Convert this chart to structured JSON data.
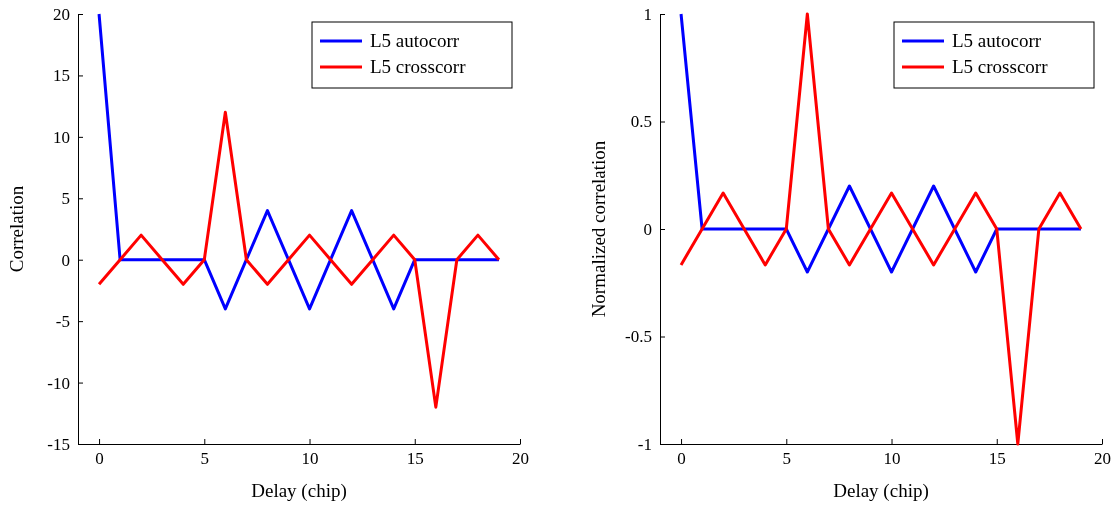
{
  "chart_data": [
    {
      "type": "line",
      "xlabel": "Delay (chip)",
      "ylabel": "Correlation",
      "x": [
        0,
        1,
        2,
        3,
        4,
        5,
        6,
        7,
        8,
        9,
        10,
        11,
        12,
        13,
        14,
        15,
        16,
        17,
        18,
        19
      ],
      "series": [
        {
          "name": "L5 autocorr",
          "color": "#0000ff",
          "values": [
            20,
            0,
            0,
            0,
            0,
            0,
            -4,
            0,
            4,
            0,
            -4,
            0,
            4,
            0,
            -4,
            0,
            0,
            0,
            0,
            0
          ]
        },
        {
          "name": "L5 crosscorr",
          "color": "#ff0000",
          "values": [
            -2,
            0,
            2,
            0,
            -2,
            0,
            12,
            0,
            -2,
            0,
            2,
            0,
            -2,
            0,
            2,
            0,
            -12,
            0,
            2,
            0
          ]
        }
      ],
      "xlim": [
        -1,
        20
      ],
      "xticks": [
        0,
        5,
        10,
        15,
        20
      ],
      "ylim": [
        -15,
        20
      ],
      "yticks": [
        -15,
        -10,
        -5,
        0,
        5,
        10,
        15,
        20
      ],
      "legend": "top right",
      "grid": false,
      "marker": "none",
      "line_style": "solid"
    },
    {
      "type": "line",
      "xlabel": "Delay (chip)",
      "ylabel": "Normalized correlation",
      "x": [
        0,
        1,
        2,
        3,
        4,
        5,
        6,
        7,
        8,
        9,
        10,
        11,
        12,
        13,
        14,
        15,
        16,
        17,
        18,
        19
      ],
      "series": [
        {
          "name": "L5 autocorr",
          "color": "#0000ff",
          "values": [
            1,
            0,
            0,
            0,
            0,
            0,
            -0.2,
            0,
            0.2,
            0,
            -0.2,
            0,
            0.2,
            0,
            -0.2,
            0,
            0,
            0,
            0,
            0
          ]
        },
        {
          "name": "L5 crosscorr",
          "color": "#ff0000",
          "values": [
            -0.167,
            0,
            0.167,
            0,
            -0.167,
            0,
            1,
            0,
            -0.167,
            0,
            0.167,
            0,
            -0.167,
            0,
            0.167,
            0,
            -1,
            0,
            0.167,
            0
          ]
        }
      ],
      "xlim": [
        -1,
        20
      ],
      "xticks": [
        0,
        5,
        10,
        15,
        20
      ],
      "ylim": [
        -1,
        1
      ],
      "yticks": [
        -1,
        -0.5,
        0,
        0.5,
        1
      ],
      "legend": "top right",
      "grid": false,
      "marker": "none",
      "line_style": "solid"
    }
  ]
}
